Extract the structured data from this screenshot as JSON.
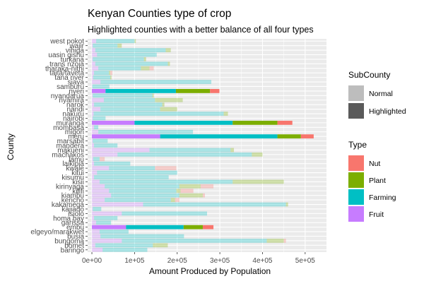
{
  "chart_data": {
    "type": "bar",
    "orientation": "horizontal",
    "stacked": true,
    "title": "Kenyan Counties type of crop",
    "subtitle": "Highlighted counties with a better balance of all four types",
    "xlabel": "Amount Produced by Population",
    "ylabel": "County",
    "xlim": [
      -10000,
      550000
    ],
    "xticks": [
      0,
      100000,
      200000,
      300000,
      400000,
      500000
    ],
    "xtick_labels": [
      "0e+00",
      "1e+05",
      "2e+05",
      "3e+05",
      "4e+05",
      "5e+05"
    ],
    "grid": true,
    "legend_position": "right",
    "colors": {
      "Fruit": "#C77CFF",
      "Farming": "#00BFC4",
      "Plant": "#7CAE00",
      "Nut": "#F8766D",
      "panel": "#EBEBEB",
      "grid": "#FFFFFF",
      "normal_key": "#BDBDBD",
      "highlight_key": "#5A5A5A"
    },
    "legend_subcounty": {
      "title": "SubCounty",
      "items": [
        "Normal",
        "Highlighted"
      ]
    },
    "legend_type": {
      "title": "Type",
      "items": [
        "Nut",
        "Plant",
        "Farming",
        "Fruit"
      ]
    },
    "stack_order": [
      "Fruit",
      "Farming",
      "Plant",
      "Nut"
    ],
    "categories": [
      "west pokot",
      "wajir",
      "vihiga",
      "uasin gishu",
      "turkana",
      "trans nzoia",
      "tharaka-nithi",
      "taita/taveta",
      "tana river",
      "siaya",
      "samburu",
      "nyeri",
      "nyandarua",
      "nyamira",
      "narok",
      "nandi",
      "nakuru",
      "nairobi",
      "muranga",
      "mombasa",
      "migori",
      "meru",
      "marsabit",
      "mandera",
      "makueni",
      "machakos",
      "lamu",
      "laikipia",
      "kwale",
      "kitui",
      "kisumu",
      "kisii",
      "kirinyaga",
      "kilifi",
      "kiambu",
      "kericho",
      "kakamega",
      "kajiado",
      "isiolo",
      "homa bay",
      "garissa",
      "embu",
      "elgeyo/marakwet",
      "busia",
      "bungoma",
      "bomet",
      "baringo"
    ],
    "highlighted": [
      "nyeri",
      "muranga",
      "meru",
      "embu"
    ],
    "series": [
      {
        "name": "Fruit",
        "values": [
          10000,
          2000,
          8000,
          12000,
          2000,
          8000,
          15000,
          5000,
          3000,
          20000,
          1000,
          32000,
          2000,
          28000,
          5000,
          20000,
          4000,
          2000,
          100000,
          5000,
          15000,
          160000,
          2000,
          5000,
          135000,
          60000,
          3000,
          5000,
          40000,
          12000,
          5000,
          18000,
          30000,
          40000,
          45000,
          30000,
          120000,
          2000,
          70000,
          5000,
          10000,
          80000,
          18000,
          20000,
          70000,
          8000,
          25000
        ]
      },
      {
        "name": "Farming",
        "values": [
          90000,
          58000,
          165000,
          140000,
          120000,
          170000,
          100000,
          35000,
          40000,
          260000,
          40000,
          165000,
          140000,
          120000,
          160000,
          140000,
          305000,
          30000,
          230000,
          10000,
          222000,
          275000,
          35000,
          55000,
          190000,
          315000,
          15000,
          85000,
          108000,
          188000,
          175000,
          312000,
          175000,
          158000,
          160000,
          155000,
          335000,
          20000,
          200000,
          55000,
          35000,
          135000,
          68000,
          196000,
          340000,
          135000,
          105000
        ]
      },
      {
        "name": "Plant",
        "values": [
          3000,
          10000,
          12000,
          0,
          5000,
          5000,
          20000,
          3000,
          3000,
          0,
          0,
          80000,
          3000,
          65000,
          5000,
          40000,
          10000,
          0,
          105000,
          0,
          0,
          55000,
          0,
          0,
          8000,
          25000,
          0,
          0,
          0,
          0,
          0,
          120000,
          50000,
          10000,
          55000,
          10000,
          5000,
          0,
          0,
          0,
          0,
          45000,
          0,
          0,
          40000,
          35000,
          0
        ]
      },
      {
        "name": "Nut",
        "values": [
          0,
          0,
          0,
          0,
          0,
          0,
          10000,
          5000,
          0,
          0,
          0,
          22000,
          0,
          0,
          0,
          0,
          0,
          0,
          35000,
          0,
          0,
          30000,
          0,
          0,
          0,
          0,
          12000,
          0,
          50000,
          0,
          0,
          0,
          30000,
          30000,
          5000,
          10000,
          0,
          0,
          0,
          0,
          0,
          25000,
          0,
          0,
          5000,
          0,
          0
        ]
      }
    ]
  }
}
